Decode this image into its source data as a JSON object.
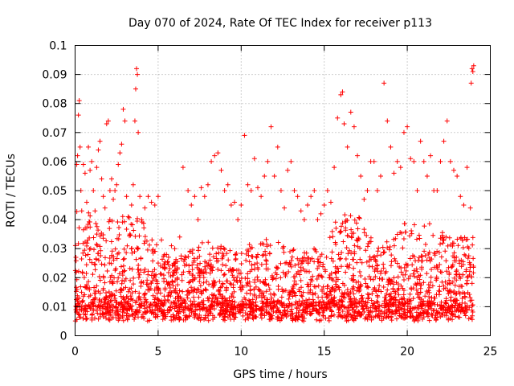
{
  "chart_data": {
    "type": "scatter",
    "title": "Day 070 of 2024, Rate Of TEC Index for receiver p113",
    "xlabel": "GPS time / hours",
    "ylabel": "ROTI / TECUs",
    "xlim": [
      0,
      25
    ],
    "ylim": [
      0,
      0.1
    ],
    "xticks": [
      0,
      5,
      10,
      15,
      20,
      25
    ],
    "xtick_labels": [
      "0",
      "5",
      "10",
      "15",
      "20",
      "25"
    ],
    "yticks": [
      0,
      0.01,
      0.02,
      0.03,
      0.04,
      0.05,
      0.06,
      0.07,
      0.08,
      0.09,
      0.1
    ],
    "ytick_labels": [
      "0",
      "0.01",
      "0.02",
      "0.03",
      "0.04",
      "0.05",
      "0.06",
      "0.07",
      "0.08",
      "0.09",
      "0.1"
    ],
    "grid": true,
    "marker": "+",
    "color": "#ff0000",
    "series": [
      {
        "name": "ROTI",
        "note": "dense point cloud; representative sample of visible points (hours, TECU/min)",
        "points": [
          [
            0.05,
            0.027
          ],
          [
            0.1,
            0.059
          ],
          [
            0.15,
            0.062
          ],
          [
            0.2,
            0.076
          ],
          [
            0.25,
            0.081
          ],
          [
            0.3,
            0.065
          ],
          [
            0.35,
            0.05
          ],
          [
            0.4,
            0.043
          ],
          [
            0.5,
            0.059
          ],
          [
            0.6,
            0.056
          ],
          [
            0.7,
            0.046
          ],
          [
            0.8,
            0.065
          ],
          [
            0.9,
            0.057
          ],
          [
            1.0,
            0.06
          ],
          [
            1.1,
            0.05
          ],
          [
            1.2,
            0.043
          ],
          [
            1.3,
            0.058
          ],
          [
            1.4,
            0.064
          ],
          [
            1.5,
            0.067
          ],
          [
            1.6,
            0.054
          ],
          [
            1.7,
            0.048
          ],
          [
            1.8,
            0.044
          ],
          [
            1.9,
            0.073
          ],
          [
            2.0,
            0.074
          ],
          [
            2.1,
            0.05
          ],
          [
            2.2,
            0.054
          ],
          [
            2.3,
            0.047
          ],
          [
            2.4,
            0.05
          ],
          [
            2.5,
            0.052
          ],
          [
            2.6,
            0.059
          ],
          [
            2.7,
            0.063
          ],
          [
            2.8,
            0.066
          ],
          [
            2.9,
            0.078
          ],
          [
            3.0,
            0.074
          ],
          [
            3.1,
            0.048
          ],
          [
            3.2,
            0.041
          ],
          [
            3.3,
            0.035
          ],
          [
            3.4,
            0.045
          ],
          [
            3.5,
            0.052
          ],
          [
            3.6,
            0.074
          ],
          [
            3.65,
            0.085
          ],
          [
            3.7,
            0.092
          ],
          [
            3.75,
            0.09
          ],
          [
            3.8,
            0.07
          ],
          [
            3.9,
            0.048
          ],
          [
            4.0,
            0.04
          ],
          [
            4.2,
            0.044
          ],
          [
            4.4,
            0.048
          ],
          [
            4.6,
            0.046
          ],
          [
            4.8,
            0.045
          ],
          [
            5.0,
            0.048
          ],
          [
            5.2,
            0.033
          ],
          [
            5.5,
            0.028
          ],
          [
            5.8,
            0.031
          ],
          [
            6.0,
            0.03
          ],
          [
            6.3,
            0.034
          ],
          [
            6.5,
            0.058
          ],
          [
            6.8,
            0.05
          ],
          [
            7.0,
            0.045
          ],
          [
            7.2,
            0.048
          ],
          [
            7.4,
            0.04
          ],
          [
            7.6,
            0.051
          ],
          [
            7.8,
            0.048
          ],
          [
            8.0,
            0.052
          ],
          [
            8.2,
            0.06
          ],
          [
            8.4,
            0.062
          ],
          [
            8.6,
            0.063
          ],
          [
            8.8,
            0.057
          ],
          [
            9.0,
            0.05
          ],
          [
            9.2,
            0.052
          ],
          [
            9.4,
            0.045
          ],
          [
            9.6,
            0.046
          ],
          [
            9.8,
            0.04
          ],
          [
            10.0,
            0.045
          ],
          [
            10.2,
            0.069
          ],
          [
            10.4,
            0.052
          ],
          [
            10.6,
            0.05
          ],
          [
            10.8,
            0.061
          ],
          [
            11.0,
            0.051
          ],
          [
            11.2,
            0.048
          ],
          [
            11.4,
            0.055
          ],
          [
            11.6,
            0.06
          ],
          [
            11.8,
            0.072
          ],
          [
            12.0,
            0.055
          ],
          [
            12.2,
            0.065
          ],
          [
            12.4,
            0.05
          ],
          [
            12.6,
            0.044
          ],
          [
            12.8,
            0.057
          ],
          [
            13.0,
            0.06
          ],
          [
            13.2,
            0.05
          ],
          [
            13.4,
            0.048
          ],
          [
            13.6,
            0.043
          ],
          [
            13.8,
            0.04
          ],
          [
            14.0,
            0.045
          ],
          [
            14.2,
            0.048
          ],
          [
            14.4,
            0.05
          ],
          [
            14.6,
            0.04
          ],
          [
            14.8,
            0.042
          ],
          [
            15.0,
            0.045
          ],
          [
            15.2,
            0.05
          ],
          [
            15.4,
            0.046
          ],
          [
            15.6,
            0.058
          ],
          [
            15.8,
            0.075
          ],
          [
            16.0,
            0.083
          ],
          [
            16.1,
            0.084
          ],
          [
            16.2,
            0.073
          ],
          [
            16.4,
            0.065
          ],
          [
            16.6,
            0.077
          ],
          [
            16.8,
            0.072
          ],
          [
            17.0,
            0.062
          ],
          [
            17.2,
            0.055
          ],
          [
            17.4,
            0.047
          ],
          [
            17.6,
            0.05
          ],
          [
            17.8,
            0.06
          ],
          [
            18.0,
            0.06
          ],
          [
            18.2,
            0.05
          ],
          [
            18.4,
            0.055
          ],
          [
            18.6,
            0.087
          ],
          [
            18.8,
            0.074
          ],
          [
            19.0,
            0.065
          ],
          [
            19.2,
            0.056
          ],
          [
            19.4,
            0.06
          ],
          [
            19.6,
            0.058
          ],
          [
            19.8,
            0.07
          ],
          [
            20.0,
            0.072
          ],
          [
            20.2,
            0.061
          ],
          [
            20.4,
            0.06
          ],
          [
            20.6,
            0.05
          ],
          [
            20.8,
            0.067
          ],
          [
            21.0,
            0.06
          ],
          [
            21.2,
            0.055
          ],
          [
            21.4,
            0.062
          ],
          [
            21.6,
            0.05
          ],
          [
            21.8,
            0.05
          ],
          [
            22.0,
            0.06
          ],
          [
            22.2,
            0.067
          ],
          [
            22.4,
            0.074
          ],
          [
            22.6,
            0.06
          ],
          [
            22.8,
            0.057
          ],
          [
            23.0,
            0.055
          ],
          [
            23.2,
            0.048
          ],
          [
            23.4,
            0.045
          ],
          [
            23.6,
            0.058
          ],
          [
            23.8,
            0.044
          ],
          [
            23.85,
            0.087
          ],
          [
            23.9,
            0.092
          ],
          [
            23.95,
            0.091
          ],
          [
            24.0,
            0.093
          ]
        ]
      }
    ]
  }
}
